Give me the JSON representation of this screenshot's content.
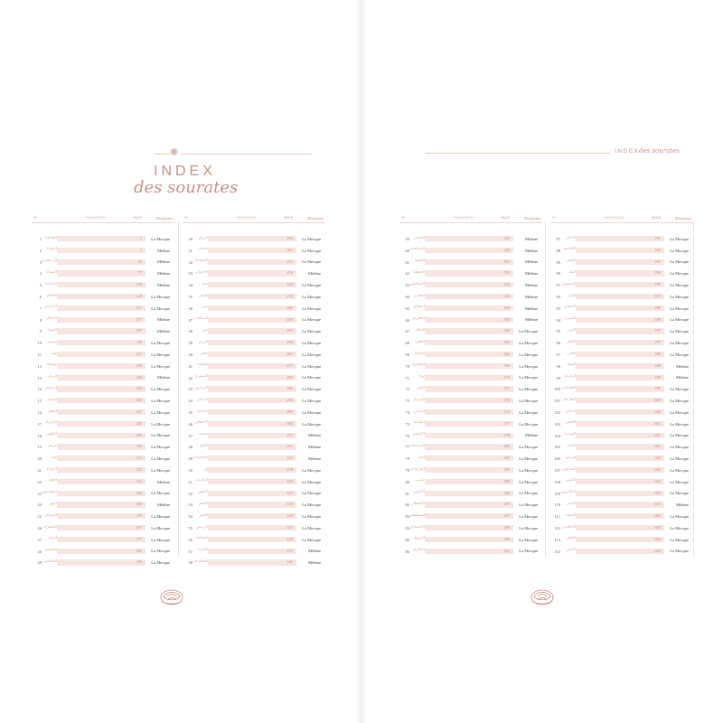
{
  "header": {
    "title_main": "INDEX",
    "title_script": "des sourates",
    "running_head_main": "INDEX",
    "running_head_script": "des sourates"
  },
  "columns_header": {
    "num": "N°",
    "sourate": "SOURATE",
    "page": "PAGE",
    "revelation": "Révélation"
  },
  "colors": {
    "accent": "#c99088",
    "bar": "#f7e5e2",
    "text": "#444444"
  },
  "icons": {
    "top_ornament": "flower-icon",
    "bottom_ornament": "rose-ornament-icon"
  },
  "separator": "·",
  "surahs": [
    [
      "1",
      "الفاتحة",
      "Al Fâtiha",
      "L'Ouverture",
      "1",
      "La Mecque"
    ],
    [
      "2",
      "البقرة",
      "Al Baqarah",
      "La Vache",
      "2",
      "Médine"
    ],
    [
      "3",
      "آل عمران",
      "Âl 'Imrân",
      "La Famille d'Imran",
      "50",
      "Médine"
    ],
    [
      "4",
      "النساء",
      "An Nisâ'",
      "Les Femmes",
      "77",
      "Médine"
    ],
    [
      "5",
      "المائدة",
      "Al Mâ'idah",
      "La Table Servie",
      "106",
      "Médine"
    ],
    [
      "6",
      "الأنعام",
      "Al An'âm",
      "Les Bestiaux",
      "128",
      "La Mecque"
    ],
    [
      "7",
      "الأعراف",
      "Al A'râf",
      "Les Murailles",
      "151",
      "La Mecque"
    ],
    [
      "8",
      "الأنفال",
      "Al Anfâl",
      "Le Butin",
      "177",
      "Médine"
    ],
    [
      "9",
      "التوبة",
      "At Tawbah",
      "Le Repentir",
      "187",
      "Médine"
    ],
    [
      "10",
      "يونس",
      "Yûnus",
      "Jonas",
      "208",
      "La Mecque"
    ],
    [
      "11",
      "هود",
      "Hûd",
      "Hud",
      "221",
      "La Mecque"
    ],
    [
      "12",
      "يوسف",
      "Yûsuf",
      "Joseph",
      "235",
      "La Mecque"
    ],
    [
      "13",
      "الرعد",
      "Ar Ra'd",
      "Le Tonnerre",
      "249",
      "Médine"
    ],
    [
      "14",
      "إبراهيم",
      "Ibrâhîm",
      "Abraham",
      "255",
      "La Mecque"
    ],
    [
      "15",
      "الحجر",
      "Al Hijr",
      "Al Hijr",
      "262",
      "La Mecque"
    ],
    [
      "16",
      "النحل",
      "An Nahl",
      "Les Abeilles",
      "267",
      "La Mecque"
    ],
    [
      "17",
      "الإسراء",
      "Al Isrâ'",
      "Le Voyage Nocturne",
      "282",
      "La Mecque"
    ],
    [
      "18",
      "الكهف",
      "Al Kahf",
      "La Caverne",
      "293",
      "La Mecque"
    ],
    [
      "19",
      "مريم",
      "Maryam",
      "Marie",
      "305",
      "La Mecque"
    ],
    [
      "20",
      "طه",
      "Tâ Hâ",
      "Ta Ha",
      "312",
      "La Mecque"
    ],
    [
      "21",
      "الأنبياء",
      "Al Anbiyâ'",
      "Les Prophètes",
      "322",
      "La Mecque"
    ],
    [
      "22",
      "الحج",
      "Al Hajj",
      "Le Pèlerinage",
      "332",
      "Médine"
    ],
    [
      "23",
      "المؤمنون",
      "Al Mu'minûn",
      "Les Croyants",
      "342",
      "La Mecque"
    ],
    [
      "24",
      "النور",
      "An Nûr",
      "La Lumière",
      "350",
      "Médine"
    ],
    [
      "25",
      "الفرقان",
      "Al Furqân",
      "Le Discernement",
      "359",
      "La Mecque"
    ],
    [
      "26",
      "الشعراء",
      "Ash Shu'arâ'",
      "Les Poètes",
      "367",
      "La Mecque"
    ],
    [
      "27",
      "النمل",
      "An Naml",
      "Les Fourmis",
      "377",
      "La Mecque"
    ],
    [
      "28",
      "القصص",
      "Al Qasas",
      "Le Récit",
      "385",
      "La Mecque"
    ],
    [
      "29",
      "العنكبوت",
      "Al 'Ankabût",
      "L'Araignée",
      "396",
      "La Mecque"
    ],
    [
      "30",
      "الروم",
      "Ar Rûm",
      "Les Romains",
      "404",
      "La Mecque"
    ],
    [
      "31",
      "لقمان",
      "Luqmân",
      "Luqman",
      "411",
      "La Mecque"
    ],
    [
      "32",
      "السجدة",
      "As Sajdah",
      "La prosternation",
      "415",
      "La Mecque"
    ],
    [
      "33",
      "الأحزاب",
      "Al Ahzâb",
      "Les coalisés",
      "418",
      "Médine"
    ],
    [
      "34",
      "سبأ",
      "Saba'",
      "Saba",
      "428",
      "La Mecque"
    ],
    [
      "35",
      "فاطر",
      "Fâtir",
      "Le Créateur",
      "434",
      "La Mecque"
    ],
    [
      "36",
      "يس",
      "Yâ Sîn",
      "Ya Sin",
      "440",
      "La Mecque"
    ],
    [
      "37",
      "الصافات",
      "As Sâffât",
      "Les Rangés",
      "445",
      "La Mecque"
    ],
    [
      "38",
      "ص",
      "Sâd",
      "Sad",
      "453",
      "La Mecque"
    ],
    [
      "39",
      "الزمر",
      "Az Zumar",
      "Les groupes",
      "458",
      "La Mecque"
    ],
    [
      "40",
      "غافر",
      "Ghâfir",
      "Le Pardonneur",
      "467",
      "La Mecque"
    ],
    [
      "41",
      "فصلت",
      "Fussilat",
      "Les Versets Détaillés",
      "477",
      "La Mecque"
    ],
    [
      "42",
      "الشورى",
      "Ash Shûrâ",
      "La Consultation",
      "483",
      "La Mecque"
    ],
    [
      "43",
      "الزخرف",
      "Az Zukhruf",
      "L'Ornement",
      "489",
      "La Mecque"
    ],
    [
      "44",
      "الدخان",
      "Ad Dukhân",
      "La Fumée",
      "496",
      "La Mecque"
    ],
    [
      "45",
      "الجاثية",
      "Al Jâthiyah",
      "L'Agenouillée",
      "499",
      "La Mecque"
    ],
    [
      "46",
      "الأحقاف",
      "Al Ahqâf",
      "Al Ahqaf",
      "502",
      "La Mecque"
    ],
    [
      "47",
      "محمد",
      "Muhammad",
      "Muhammad",
      "507",
      "Médine"
    ],
    [
      "48",
      "الفتح",
      "Al Fath",
      "La Victoire Éclatante",
      "511",
      "Médine"
    ],
    [
      "49",
      "الحجرات",
      "Al Hujurât",
      "Les Appartements",
      "515",
      "Médine"
    ],
    [
      "50",
      "ق",
      "Qâf",
      "Qaf",
      "518",
      "La Mecque"
    ],
    [
      "51",
      "الذاريات",
      "Adh Dhâriyât",
      "Qui Éparpillent",
      "520",
      "La Mecque"
    ],
    [
      "52",
      "الطور",
      "At Tûr",
      "At Tur",
      "523",
      "La Mecque"
    ],
    [
      "53",
      "النجم",
      "An Najm",
      "L'Étoile",
      "526",
      "La Mecque"
    ],
    [
      "54",
      "القمر",
      "Al Qamar",
      "La Lune",
      "528",
      "La Mecque"
    ],
    [
      "55",
      "الرحمن",
      "Ar Rahmân",
      "Le Tout Miséricordieux",
      "531",
      "La Mecque"
    ],
    [
      "56",
      "الواقعة",
      "Al Wâqi'ah",
      "L'Événement",
      "534",
      "La Mecque"
    ],
    [
      "57",
      "الحديد",
      "Al Hadîd",
      "Le Fer",
      "537",
      "Médine"
    ],
    [
      "58",
      "المجادلة",
      "Al Mujâdalah",
      "La Discussion",
      "542",
      "Médine"
    ],
    [
      "59",
      "الحشر",
      "Al Hashr",
      "L'Exode",
      "545",
      "Médine"
    ],
    [
      "60",
      "الممتحنة",
      "Al Mumtahanah",
      "L'Éprouvée",
      "549",
      "Médine"
    ],
    [
      "61",
      "الصف",
      "As Saff",
      "Le Rang",
      "551",
      "Médine"
    ],
    [
      "62",
      "الجمعة",
      "Al Jumu'ah",
      "Le Vendredi",
      "553",
      "Médine"
    ],
    [
      "63",
      "المنافقون",
      "Al Munâfiqûn",
      "Les Hypocrites",
      "554",
      "Médine"
    ],
    [
      "64",
      "التغابن",
      "At Taghâbun",
      "La Grande Perte",
      "556",
      "Médine"
    ],
    [
      "65",
      "الطلاق",
      "At Talâq",
      "Le Divorce",
      "558",
      "Médine"
    ],
    [
      "66",
      "التحريم",
      "At Tahrîm",
      "L'Interdiction",
      "560",
      "Médine"
    ],
    [
      "67",
      "الملك",
      "Al Mulk",
      "La Royauté",
      "562",
      "La Mecque"
    ],
    [
      "68",
      "القلم",
      "Al Qalam",
      "La Plume",
      "564",
      "La Mecque"
    ],
    [
      "69",
      "الحاقة",
      "Al Hâqqah",
      "Celle qui montre la Vérité",
      "566",
      "La Mecque"
    ],
    [
      "70",
      "المعارج",
      "Al Ma'ârij",
      "Les Voies d'Ascension",
      "568",
      "La Mecque"
    ],
    [
      "71",
      "نوح",
      "Nûh",
      "Noé",
      "570",
      "La Mecque"
    ],
    [
      "72",
      "الجن",
      "Al Jinn",
      "Les Djinns",
      "572",
      "La Mecque"
    ],
    [
      "73",
      "المزمل",
      "Al Muzzammil",
      "L'Enveloppé",
      "574",
      "La Mecque"
    ],
    [
      "74",
      "المدثر",
      "Al Muddaththir",
      "Le Revêtu d'un Manteau",
      "575",
      "La Mecque"
    ],
    [
      "75",
      "القيامة",
      "Al Qiyâmah",
      "La Résurrection",
      "577",
      "La Mecque"
    ],
    [
      "76",
      "الإنسان",
      "Al Insân",
      "L'Homme",
      "578",
      "Médine"
    ],
    [
      "77",
      "المرسلات",
      "Al Mursalât",
      "Les Envoyés",
      "580",
      "La Mecque"
    ],
    [
      "78",
      "النبأ",
      "An Naba'",
      "La Nouvelle",
      "582",
      "La Mecque"
    ],
    [
      "79",
      "النازعات",
      "An Nâzi'ât",
      "Les Anges qui Arrachent les Âmes",
      "583",
      "La Mecque"
    ],
    [
      "80",
      "عبس",
      "'Abasa",
      "Il s'est renfrogné",
      "585",
      "La Mecque"
    ],
    [
      "81",
      "التكوير",
      "At Takwîr",
      "L'Obscurcissement",
      "586",
      "La Mecque"
    ],
    [
      "82",
      "الانفطار",
      "Al Infitâr",
      "La Rupture",
      "587",
      "La Mecque"
    ],
    [
      "83",
      "المطففين",
      "Al Mutaffifîn",
      "Les Fraudeurs",
      "587",
      "La Mecque"
    ],
    [
      "84",
      "الانشقاق",
      "Al Inshiqâq",
      "La Déchirure",
      "589",
      "La Mecque"
    ],
    [
      "85",
      "البروج",
      "Al Burûj",
      "Les Constellations",
      "590",
      "La Mecque"
    ],
    [
      "86",
      "الطارق",
      "At Târiq",
      "L'Astre Nocturne",
      "591",
      "La Mecque"
    ],
    [
      "87",
      "الأعلى",
      "Al A'lâ",
      "Le Très-Haut",
      "591",
      "La Mecque"
    ],
    [
      "88",
      "الغاشية",
      "Al Ghâshiyah",
      "L'Enveloppante",
      "592",
      "La Mecque"
    ],
    [
      "89",
      "الفجر",
      "Al Fajr",
      "L'Aube",
      "593",
      "La Mecque"
    ],
    [
      "90",
      "البلد",
      "Al Balad",
      "La Cité",
      "594",
      "La Mecque"
    ],
    [
      "91",
      "الشمس",
      "Ash Shams",
      "Le Soleil",
      "595",
      "La Mecque"
    ],
    [
      "92",
      "الليل",
      "Al Layl",
      "La Nuit",
      "595",
      "La Mecque"
    ],
    [
      "93",
      "الضحى",
      "Ad Duhâ",
      "Le Jour Montant",
      "596",
      "La Mecque"
    ],
    [
      "94",
      "الشرح",
      "Ash Sharh",
      "L'Ouverture",
      "596",
      "La Mecque"
    ],
    [
      "95",
      "التين",
      "At Tîn",
      "Le Figuier",
      "597",
      "La Mecque"
    ],
    [
      "96",
      "العلق",
      "Al 'Alaq",
      "L'Adhérence",
      "597",
      "La Mecque"
    ],
    [
      "97",
      "القدر",
      "Al Qadr",
      "La Destinée",
      "598",
      "La Mecque"
    ],
    [
      "98",
      "البينة",
      "Al Bayyinah",
      "La preuve",
      "598",
      "Médine"
    ],
    [
      "99",
      "الزلزلة",
      "Az Zalzalah",
      "La Secousse",
      "599",
      "Médine"
    ],
    [
      "100",
      "العاديات",
      "Al 'Âdiyât",
      "Les Coursiers",
      "599",
      "La Mecque"
    ],
    [
      "101",
      "القارعة",
      "Al Qâri'ah",
      "Le Fracas",
      "600",
      "La Mecque"
    ],
    [
      "102",
      "التكاثر",
      "At Takâthur",
      "La Course aux Richesses",
      "600",
      "La Mecque"
    ],
    [
      "103",
      "العصر",
      "Al 'Asr",
      "Le Temps",
      "601",
      "La Mecque"
    ],
    [
      "104",
      "الهمزة",
      "Al Humazah",
      "Les Calomniateurs",
      "601",
      "La Mecque"
    ],
    [
      "105",
      "الفيل",
      "Al Fîl",
      "L'Éléphant",
      "601",
      "La Mecque"
    ],
    [
      "106",
      "قريش",
      "Quraysh",
      "Quraysh",
      "602",
      "La Mecque"
    ],
    [
      "107",
      "الماعون",
      "Al Mâ'ûn",
      "L'Ustensile",
      "602",
      "La Mecque"
    ],
    [
      "108",
      "الكوثر",
      "Al Kawthar",
      "L'Abondance",
      "602",
      "La Mecque"
    ],
    [
      "109",
      "الكافرون",
      "Al Kâfirûn",
      "Les Infidèles",
      "603",
      "La Mecque"
    ],
    [
      "110",
      "النصر",
      "An Nasr",
      "Le Secours",
      "603",
      "Médine"
    ],
    [
      "111",
      "المسد",
      "Al Masad",
      "Les Fibres",
      "603",
      "La Mecque"
    ],
    [
      "112",
      "الإخلاص",
      "Al Ikhlâs",
      "Le Monothéisme Pur",
      "604",
      "La Mecque"
    ],
    [
      "113",
      "الفلق",
      "Al Falaq",
      "L'Aube Naissante",
      "604",
      "La Mecque"
    ],
    [
      "114",
      "الناس",
      "An Nâs",
      "Les Hommes",
      "604",
      "La Mecque"
    ]
  ]
}
